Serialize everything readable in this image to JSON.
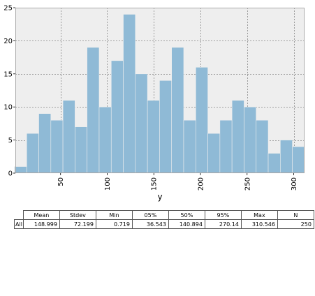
{
  "chart_data": {
    "type": "bar",
    "subtype": "histogram",
    "xlabel": "y",
    "ylabel": "",
    "xlim": [
      1.52,
      311.6
    ],
    "ylim": [
      0,
      25
    ],
    "x_ticks": [
      50,
      100,
      150,
      200,
      250,
      300
    ],
    "y_ticks": [
      0,
      5,
      10,
      15,
      20,
      25
    ],
    "grid": true,
    "bar_color": "#8fbad6",
    "background_color": "#eeeeee",
    "bin_edges": [
      0.719,
      13.67,
      26.62,
      39.57,
      52.52,
      65.47,
      78.42,
      91.37,
      104.32,
      117.27,
      130.22,
      143.17,
      156.12,
      169.07,
      182.02,
      194.97,
      207.92,
      220.87,
      233.82,
      246.77,
      259.72,
      272.67,
      285.62,
      298.57,
      311.52
    ],
    "values": [
      1,
      6,
      9,
      8,
      11,
      7,
      19,
      10,
      17,
      24,
      15,
      11,
      14,
      19,
      8,
      16,
      6,
      8,
      11,
      10,
      8,
      3,
      5,
      4
    ]
  },
  "stats_table": {
    "headers": [
      "Mean",
      "Stdev",
      "Min",
      "05%",
      "50%",
      "95%",
      "Max",
      "N"
    ],
    "rows": [
      {
        "label": "All",
        "values": [
          "148.999",
          "72.199",
          "0.719",
          "36.543",
          "140.894",
          "270.14",
          "310.546",
          "250"
        ]
      }
    ]
  }
}
